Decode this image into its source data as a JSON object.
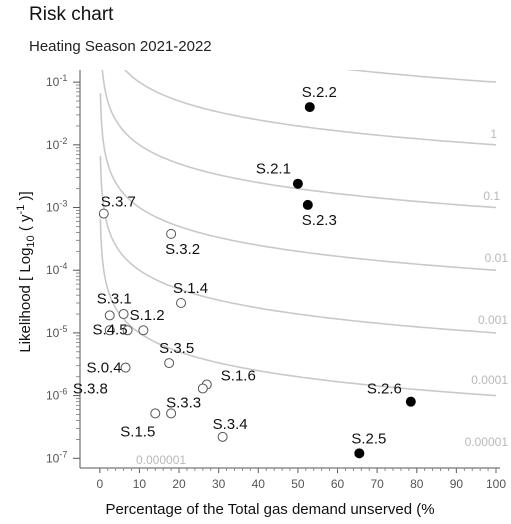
{
  "header": {
    "title": "Risk chart",
    "subtitle": "Heating Season 2021-2022"
  },
  "chart_data": {
    "type": "scatter",
    "title": "Risk chart",
    "subtitle": "Heating Season 2021-2022",
    "xlabel": "Percentage of the Total gas demand unserved (%",
    "ylabel": "Likelihood [ Log10 ( y-1 )]",
    "ylabel_parts": {
      "main": "Likelihood [ Log",
      "sub": "10",
      "mid": " ( y",
      "sup": "-1",
      "end": " )]"
    },
    "xlim": [
      -5,
      100
    ],
    "ylim": [
      7e-08,
      0.13
    ],
    "y_scale": "log",
    "grid": false,
    "x_ticks": [
      0,
      10,
      20,
      30,
      40,
      50,
      60,
      70,
      80,
      90,
      100
    ],
    "y_ticks": [
      {
        "value": 0.1,
        "base": "10",
        "exp": "-1"
      },
      {
        "value": 0.01,
        "base": "10",
        "exp": "-2"
      },
      {
        "value": 0.001,
        "base": "10",
        "exp": "-3"
      },
      {
        "value": 0.0001,
        "base": "10",
        "exp": "-4"
      },
      {
        "value": 1e-05,
        "base": "10",
        "exp": "-5"
      },
      {
        "value": 1e-06,
        "base": "10",
        "exp": "-6"
      },
      {
        "value": 1e-07,
        "base": "10",
        "exp": "-7"
      }
    ],
    "iso_risk_curves": [
      {
        "label": "1",
        "risk": 1
      },
      {
        "label": "0.1",
        "risk": 0.1
      },
      {
        "label": "0.01",
        "risk": 0.01
      },
      {
        "label": "0.001",
        "risk": 0.001
      },
      {
        "label": "0.0001",
        "risk": 0.0001
      },
      {
        "label": "0.00001",
        "risk": 1e-05
      },
      {
        "label": "0.000001",
        "risk": 1e-06
      }
    ],
    "series": [
      {
        "marker": "filled",
        "points": [
          {
            "label": "S.2.2",
            "x": 53,
            "y": 0.04
          },
          {
            "label": "S.2.1",
            "x": 50,
            "y": 0.0024
          },
          {
            "label": "S.2.3",
            "x": 52.5,
            "y": 0.0011
          },
          {
            "label": "S.2.6",
            "x": 78.5,
            "y": 8e-07
          },
          {
            "label": "S.2.5",
            "x": 65.5,
            "y": 1.2e-07
          }
        ]
      },
      {
        "marker": "open",
        "points": [
          {
            "label": "S.3.7",
            "x": 1,
            "y": 0.0008
          },
          {
            "label": "S.3.2",
            "x": 18,
            "y": 0.00038
          },
          {
            "label": "S.1.4",
            "x": 20.5,
            "y": 3e-05
          },
          {
            "label": "S.3.1",
            "x": 2.5,
            "y": 1.9e-05
          },
          {
            "label": "S.1.2",
            "x": 6,
            "y": 2e-05
          },
          {
            "label": "S.4.5",
            "x": 7,
            "y": 1.1e-05
          },
          {
            "label": "S.0.4",
            "x": 6.5,
            "y": 2.8e-06
          },
          {
            "label": "S.3.5",
            "x": 17.5,
            "y": 3.3e-06
          },
          {
            "label": "S.1.6",
            "x": 27,
            "y": 1.5e-06
          },
          {
            "label": "S.3.8",
            "x": 26,
            "y": 1.3e-06
          },
          {
            "label": "S.3.3",
            "x": 18,
            "y": 5.2e-07
          },
          {
            "label": "S.1.5",
            "x": 14,
            "y": 5.2e-07
          },
          {
            "label": "S.3.4",
            "x": 31,
            "y": 2.2e-07
          }
        ]
      }
    ],
    "extra_markers": [
      {
        "x": 11,
        "y": 1.1e-05
      },
      {
        "x": 2.5,
        "y": 1.1e-05
      }
    ]
  }
}
